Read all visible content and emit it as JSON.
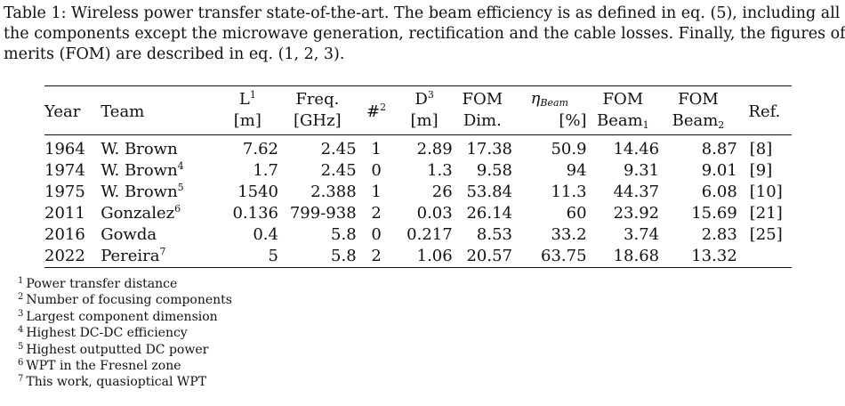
{
  "caption": {
    "line1": "Table 1: Wireless power transfer state-of-the-art. The beam efficiency is as defined in eq. (5), including all",
    "line2": "the components except the microwave generation, rectification and the cable losses. Finally, the figures of",
    "line3": "merits (FOM) are described in eq. (1, 2, 3)."
  },
  "table": {
    "headers": {
      "year": "Year",
      "team": "Team",
      "l": "L",
      "l_sup": "1",
      "l_unit": "[m]",
      "freq": "Freq.",
      "freq_unit": "[GHz]",
      "num": "#",
      "num_sup": "2",
      "d": "D",
      "d_sup": "3",
      "d_unit": "[m]",
      "fom_dim": "FOM",
      "fom_dim_2": "Dim.",
      "eta": "η",
      "eta_sub": "Beam",
      "eta_unit": "[%]",
      "fom_beam1": "FOM",
      "fom_beam1_2": "Beam",
      "fom_beam1_sub": "1",
      "fom_beam2": "FOM",
      "fom_beam2_2": "Beam",
      "fom_beam2_sub": "2",
      "ref": "Ref."
    },
    "rows": [
      {
        "year": "1964",
        "team": "W. Brown",
        "team_sup": "",
        "l": "7.62",
        "freq": "2.45",
        "num": "1",
        "d": "2.89",
        "fom_dim": "17.38",
        "eta": "50.9",
        "fom_beam1": "14.46",
        "fom_beam2": "8.87",
        "ref": "[8]"
      },
      {
        "year": "1974",
        "team": "W. Brown",
        "team_sup": "4",
        "l": "1.7",
        "freq": "2.45",
        "num": "0",
        "d": "1.3",
        "fom_dim": "9.58",
        "eta": "94",
        "fom_beam1": "9.31",
        "fom_beam2": "9.01",
        "ref": "[9]"
      },
      {
        "year": "1975",
        "team": "W. Brown",
        "team_sup": "5",
        "l": "1540",
        "freq": "2.388",
        "num": "1",
        "d": "26",
        "fom_dim": "53.84",
        "eta": "11.3",
        "fom_beam1": "44.37",
        "fom_beam2": "6.08",
        "ref": "[10]"
      },
      {
        "year": "2011",
        "team": "Gonzalez",
        "team_sup": "6",
        "l": "0.136",
        "freq": "799-938",
        "num": "2",
        "d": "0.03",
        "fom_dim": "26.14",
        "eta": "60",
        "fom_beam1": "23.92",
        "fom_beam2": "15.69",
        "ref": "[21]"
      },
      {
        "year": "2016",
        "team": "Gowda",
        "team_sup": "",
        "l": "0.4",
        "freq": "5.8",
        "num": "0",
        "d": "0.217",
        "fom_dim": "8.53",
        "eta": "33.2",
        "fom_beam1": "3.74",
        "fom_beam2": "2.83",
        "ref": "[25]"
      },
      {
        "year": "2022",
        "team": "Pereira",
        "team_sup": "7",
        "l": "5",
        "freq": "5.8",
        "num": "2",
        "d": "1.06",
        "fom_dim": "20.57",
        "eta": "63.75",
        "fom_beam1": "18.68",
        "fom_beam2": "13.32",
        "ref": ""
      }
    ]
  },
  "footnotes": [
    {
      "mark": "1",
      "text": "Power transfer distance"
    },
    {
      "mark": "2",
      "text": "Number of focusing components"
    },
    {
      "mark": "3",
      "text": "Largest component dimension"
    },
    {
      "mark": "4",
      "text": "Highest DC-DC efficiency"
    },
    {
      "mark": "5",
      "text": "Highest outputted DC power"
    },
    {
      "mark": "6",
      "text": "WPT in the Fresnel zone"
    },
    {
      "mark": "7",
      "text": "This work, quasioptical WPT"
    }
  ]
}
